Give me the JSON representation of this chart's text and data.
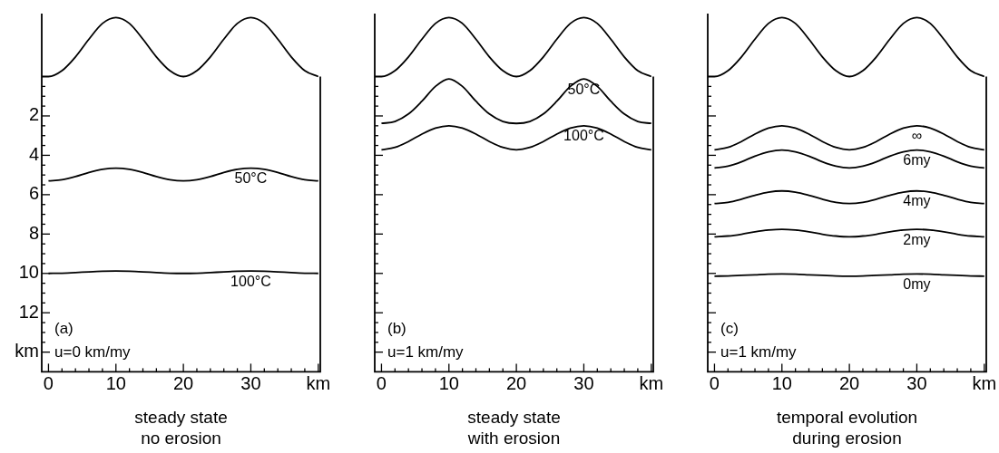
{
  "chart_data": [
    {
      "type": "line",
      "xlabel": "steady state\nno erosion",
      "annotations": [
        "(a)",
        "u=0 km/my"
      ],
      "marker": "none",
      "x": [
        0,
        2,
        4,
        6,
        8,
        10,
        12,
        14,
        16,
        18,
        20,
        22,
        24,
        26,
        28,
        30,
        32,
        34,
        36,
        38,
        40
      ],
      "xlim": [
        -1,
        40.3
      ],
      "ylim": [
        15,
        -3.2
      ],
      "xticks": [
        0,
        {
          "value": 2,
          "label": null
        },
        {
          "value": 4,
          "label": null
        },
        {
          "value": 6,
          "label": null
        },
        {
          "value": 8,
          "label": null
        },
        10,
        {
          "value": 12,
          "label": null
        },
        {
          "value": 14,
          "label": null
        },
        {
          "value": 16,
          "label": null
        },
        {
          "value": 18,
          "label": null
        },
        20,
        {
          "value": 22,
          "label": null
        },
        {
          "value": 24,
          "label": null
        },
        {
          "value": 26,
          "label": null
        },
        {
          "value": 28,
          "label": null
        },
        30,
        {
          "value": 32,
          "label": null
        },
        {
          "value": 34,
          "label": null
        },
        {
          "value": 36,
          "label": null
        },
        {
          "value": 38,
          "label": null
        },
        {
          "value": 40,
          "label": "km"
        }
      ],
      "yticks": [
        {
          "value": 0.5,
          "label": null
        },
        {
          "value": 1,
          "label": null
        },
        {
          "value": 1.5,
          "label": null
        },
        2,
        {
          "value": 2.5,
          "label": null
        },
        {
          "value": 3,
          "label": null
        },
        {
          "value": 3.5,
          "label": null
        },
        4,
        {
          "value": 4.5,
          "label": null
        },
        {
          "value": 5,
          "label": null
        },
        {
          "value": 5.5,
          "label": null
        },
        6,
        {
          "value": 6.5,
          "label": null
        },
        {
          "value": 7,
          "label": null
        },
        {
          "value": 7.5,
          "label": null
        },
        8,
        {
          "value": 8.5,
          "label": null
        },
        {
          "value": 9,
          "label": null
        },
        {
          "value": 9.5,
          "label": null
        },
        10,
        {
          "value": 10.5,
          "label": null
        },
        {
          "value": 11,
          "label": null
        },
        {
          "value": 11.5,
          "label": null
        },
        12,
        {
          "value": 12.5,
          "label": null
        },
        {
          "value": 13,
          "label": null
        },
        {
          "value": 13.5,
          "label": null
        },
        {
          "value": 14,
          "label": "km"
        }
      ],
      "series": [
        {
          "color": "#000000",
          "x": [
            -1,
            0,
            2,
            4,
            6,
            8,
            10,
            12,
            14,
            16,
            18,
            20,
            22,
            24,
            26,
            28,
            30,
            32,
            34,
            36,
            38,
            40
          ],
          "values": [
            0,
            0,
            -0.3,
            -1.0,
            -1.9,
            -2.7,
            -3.0,
            -2.7,
            -1.9,
            -1.0,
            -0.3,
            0,
            -0.3,
            -1.0,
            -1.9,
            -2.7,
            -3.0,
            -2.7,
            -1.9,
            -1.0,
            -0.3,
            0
          ]
        },
        {
          "name": "50°C",
          "color": "#000000",
          "values": [
            5.3,
            5.24,
            5.08,
            4.87,
            4.71,
            4.65,
            4.71,
            4.87,
            5.08,
            5.24,
            5.3,
            5.24,
            5.08,
            4.87,
            4.71,
            4.65,
            4.71,
            4.87,
            5.08,
            5.24,
            5.3
          ]
        },
        {
          "name": "100°C",
          "color": "#000000",
          "values": [
            10.0,
            9.99,
            9.96,
            9.92,
            9.89,
            9.88,
            9.89,
            9.92,
            9.96,
            9.99,
            10.0,
            9.99,
            9.96,
            9.92,
            9.89,
            9.88,
            9.89,
            9.92,
            9.96,
            9.99,
            10.0
          ]
        }
      ]
    },
    {
      "type": "line",
      "xlabel": "steady state\nwith erosion",
      "annotations": [
        "(b)",
        "u=1 km/my"
      ],
      "marker": "none",
      "tick_labels": "x",
      "x": [
        0,
        2,
        4,
        6,
        8,
        10,
        12,
        14,
        16,
        18,
        20,
        22,
        24,
        26,
        28,
        30,
        32,
        34,
        36,
        38,
        40
      ],
      "xlim": [
        -1,
        40.3
      ],
      "ylim": [
        15,
        -3.2
      ],
      "xticks": [
        0,
        {
          "value": 2,
          "label": null
        },
        {
          "value": 4,
          "label": null
        },
        {
          "value": 6,
          "label": null
        },
        {
          "value": 8,
          "label": null
        },
        10,
        {
          "value": 12,
          "label": null
        },
        {
          "value": 14,
          "label": null
        },
        {
          "value": 16,
          "label": null
        },
        {
          "value": 18,
          "label": null
        },
        20,
        {
          "value": 22,
          "label": null
        },
        {
          "value": 24,
          "label": null
        },
        {
          "value": 26,
          "label": null
        },
        {
          "value": 28,
          "label": null
        },
        30,
        {
          "value": 32,
          "label": null
        },
        {
          "value": 34,
          "label": null
        },
        {
          "value": 36,
          "label": null
        },
        {
          "value": 38,
          "label": null
        },
        {
          "value": 40,
          "label": "km"
        }
      ],
      "yticks": [
        {
          "value": 0.5,
          "label": null
        },
        {
          "value": 1,
          "label": null
        },
        {
          "value": 1.5,
          "label": null
        },
        2,
        {
          "value": 2.5,
          "label": null
        },
        {
          "value": 3,
          "label": null
        },
        {
          "value": 3.5,
          "label": null
        },
        4,
        {
          "value": 4.5,
          "label": null
        },
        {
          "value": 5,
          "label": null
        },
        {
          "value": 5.5,
          "label": null
        },
        6,
        {
          "value": 6.5,
          "label": null
        },
        {
          "value": 7,
          "label": null
        },
        {
          "value": 7.5,
          "label": null
        },
        8,
        {
          "value": 8.5,
          "label": null
        },
        {
          "value": 9,
          "label": null
        },
        {
          "value": 9.5,
          "label": null
        },
        10,
        {
          "value": 10.5,
          "label": null
        },
        {
          "value": 11,
          "label": null
        },
        {
          "value": 11.5,
          "label": null
        },
        12,
        {
          "value": 12.5,
          "label": null
        },
        {
          "value": 13,
          "label": null
        },
        {
          "value": 13.5,
          "label": null
        },
        14
      ],
      "series": [
        {
          "color": "#000000",
          "x": [
            -1,
            0,
            2,
            4,
            6,
            8,
            10,
            12,
            14,
            16,
            18,
            20,
            22,
            24,
            26,
            28,
            30,
            32,
            34,
            36,
            38,
            40
          ],
          "values": [
            0,
            0,
            -0.3,
            -1.0,
            -1.9,
            -2.7,
            -3.0,
            -2.7,
            -1.9,
            -1.0,
            -0.3,
            0,
            -0.3,
            -1.0,
            -1.9,
            -2.7,
            -3.0,
            -2.7,
            -1.9,
            -1.0,
            -0.3,
            0
          ]
        },
        {
          "name": "50°C",
          "color": "#000000",
          "values": [
            2.38,
            2.28,
            1.9,
            1.25,
            0.5,
            0.12,
            0.5,
            1.25,
            1.9,
            2.28,
            2.38,
            2.28,
            1.9,
            1.25,
            0.5,
            0.12,
            0.5,
            1.25,
            1.9,
            2.28,
            2.38
          ]
        },
        {
          "name": "100°C",
          "color": "#000000",
          "values": [
            3.72,
            3.6,
            3.3,
            2.92,
            2.62,
            2.5,
            2.62,
            2.92,
            3.3,
            3.6,
            3.72,
            3.6,
            3.3,
            2.92,
            2.62,
            2.5,
            2.62,
            2.92,
            3.3,
            3.6,
            3.72
          ]
        }
      ]
    },
    {
      "type": "line",
      "xlabel": "temporal evolution\nduring erosion",
      "annotations": [
        "(c)",
        "u=1 km/my"
      ],
      "marker": "none",
      "tick_labels": "x",
      "x": [
        0,
        2,
        4,
        6,
        8,
        10,
        12,
        14,
        16,
        18,
        20,
        22,
        24,
        26,
        28,
        30,
        32,
        34,
        36,
        38,
        40
      ],
      "xlim": [
        -1,
        40.3
      ],
      "ylim": [
        15,
        -3.2
      ],
      "xticks": [
        0,
        {
          "value": 2,
          "label": null
        },
        {
          "value": 4,
          "label": null
        },
        {
          "value": 6,
          "label": null
        },
        {
          "value": 8,
          "label": null
        },
        10,
        {
          "value": 12,
          "label": null
        },
        {
          "value": 14,
          "label": null
        },
        {
          "value": 16,
          "label": null
        },
        {
          "value": 18,
          "label": null
        },
        20,
        {
          "value": 22,
          "label": null
        },
        {
          "value": 24,
          "label": null
        },
        {
          "value": 26,
          "label": null
        },
        {
          "value": 28,
          "label": null
        },
        30,
        {
          "value": 32,
          "label": null
        },
        {
          "value": 34,
          "label": null
        },
        {
          "value": 36,
          "label": null
        },
        {
          "value": 38,
          "label": null
        },
        {
          "value": 40,
          "label": "km"
        }
      ],
      "yticks": [
        {
          "value": 0.5,
          "label": null
        },
        {
          "value": 1,
          "label": null
        },
        {
          "value": 1.5,
          "label": null
        },
        2,
        {
          "value": 2.5,
          "label": null
        },
        {
          "value": 3,
          "label": null
        },
        {
          "value": 3.5,
          "label": null
        },
        4,
        {
          "value": 4.5,
          "label": null
        },
        {
          "value": 5,
          "label": null
        },
        {
          "value": 5.5,
          "label": null
        },
        6,
        {
          "value": 6.5,
          "label": null
        },
        {
          "value": 7,
          "label": null
        },
        {
          "value": 7.5,
          "label": null
        },
        8,
        {
          "value": 8.5,
          "label": null
        },
        {
          "value": 9,
          "label": null
        },
        {
          "value": 9.5,
          "label": null
        },
        10,
        {
          "value": 10.5,
          "label": null
        },
        {
          "value": 11,
          "label": null
        },
        {
          "value": 11.5,
          "label": null
        },
        12,
        {
          "value": 12.5,
          "label": null
        },
        {
          "value": 13,
          "label": null
        },
        {
          "value": 13.5,
          "label": null
        },
        14
      ],
      "series": [
        {
          "color": "#000000",
          "x": [
            -1,
            0,
            2,
            4,
            6,
            8,
            10,
            12,
            14,
            16,
            18,
            20,
            22,
            24,
            26,
            28,
            30,
            32,
            34,
            36,
            38,
            40
          ],
          "values": [
            0,
            0,
            -0.3,
            -1.0,
            -1.9,
            -2.7,
            -3.0,
            -2.7,
            -1.9,
            -1.0,
            -0.3,
            0,
            -0.3,
            -1.0,
            -1.9,
            -2.7,
            -3.0,
            -2.7,
            -1.9,
            -1.0,
            -0.3,
            0
          ]
        },
        {
          "name": "∞",
          "color": "#000000",
          "values": [
            3.72,
            3.6,
            3.3,
            2.92,
            2.62,
            2.5,
            2.62,
            2.92,
            3.3,
            3.6,
            3.72,
            3.6,
            3.3,
            2.92,
            2.62,
            2.5,
            2.62,
            2.92,
            3.3,
            3.6,
            3.72
          ]
        },
        {
          "name": "6my",
          "color": "#000000",
          "values": [
            4.64,
            4.55,
            4.33,
            4.04,
            3.82,
            3.73,
            3.82,
            4.04,
            4.33,
            4.55,
            4.64,
            4.55,
            4.33,
            4.04,
            3.82,
            3.73,
            3.82,
            4.04,
            4.33,
            4.55,
            4.64
          ]
        },
        {
          "name": "4my",
          "color": "#000000",
          "values": [
            6.45,
            6.39,
            6.23,
            6.03,
            5.87,
            5.81,
            5.87,
            6.03,
            6.23,
            6.39,
            6.45,
            6.39,
            6.23,
            6.03,
            5.87,
            5.81,
            5.87,
            6.03,
            6.23,
            6.39,
            6.45
          ]
        },
        {
          "name": "2my",
          "color": "#000000",
          "values": [
            8.14,
            8.1,
            8.01,
            7.89,
            7.8,
            7.76,
            7.8,
            7.89,
            8.01,
            8.1,
            8.14,
            8.1,
            8.01,
            7.89,
            7.8,
            7.76,
            7.8,
            7.89,
            8.01,
            8.1,
            8.14
          ]
        },
        {
          "name": "0my",
          "color": "#000000",
          "values": [
            10.14,
            10.13,
            10.1,
            10.07,
            10.04,
            10.03,
            10.04,
            10.07,
            10.1,
            10.13,
            10.14,
            10.13,
            10.1,
            10.07,
            10.04,
            10.03,
            10.04,
            10.07,
            10.1,
            10.13,
            10.14
          ]
        }
      ]
    }
  ]
}
